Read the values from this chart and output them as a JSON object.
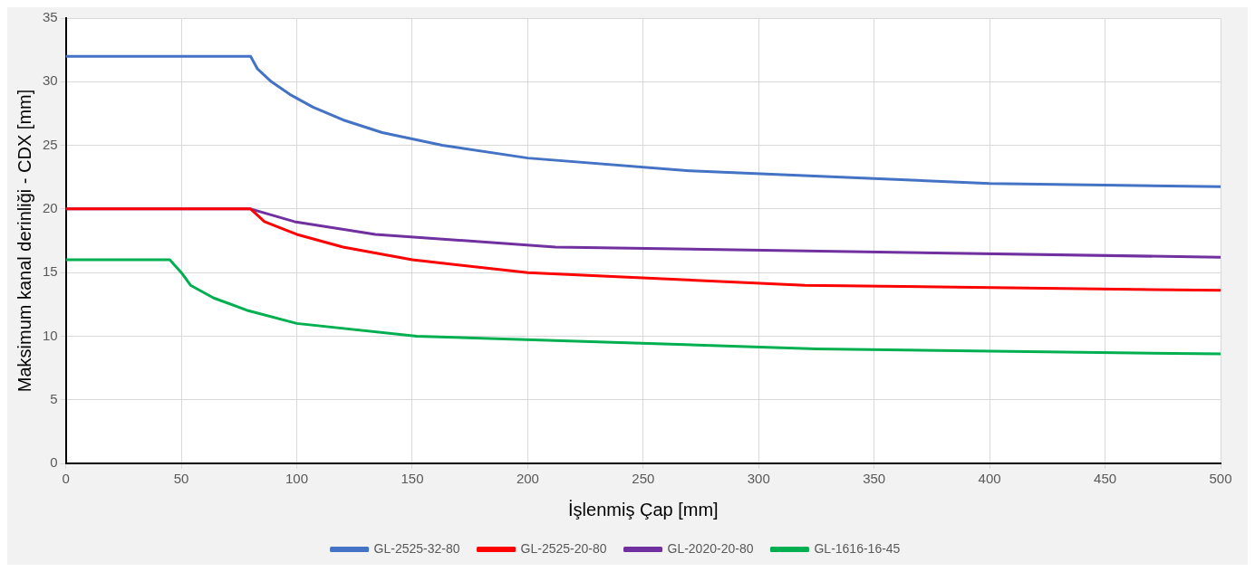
{
  "chart_data": {
    "type": "line",
    "xlabel": "İşlenmiş Çap [mm]",
    "ylabel": "Maksimum kanal derinliği - CDX [mm]",
    "xlim": [
      0,
      500
    ],
    "xticks": [
      0,
      50,
      100,
      150,
      200,
      250,
      300,
      350,
      400,
      450,
      500
    ],
    "ylim": [
      0,
      35
    ],
    "yticks": [
      0,
      5,
      10,
      15,
      20,
      25,
      30,
      35
    ],
    "grid": true,
    "legend": "bottom",
    "marker": "none",
    "line_style": "solid",
    "series": [
      {
        "name": "GL-2525-32-80",
        "color": "#4472c4",
        "x": [
          0,
          80,
          83,
          89,
          97,
          107,
          120,
          137,
          163,
          200,
          270,
          400,
          500
        ],
        "values": [
          32,
          32,
          31,
          30,
          29,
          28,
          27,
          26,
          25,
          24,
          23,
          22,
          21.75
        ]
      },
      {
        "name": "GL-2525-20-80",
        "color": "#ff0000",
        "x": [
          0,
          80,
          86,
          100,
          120,
          150,
          200,
          320,
          500
        ],
        "values": [
          20,
          20,
          19,
          18,
          17,
          16,
          15,
          14,
          13.6
        ]
      },
      {
        "name": "GL-2020-20-80",
        "color": "#7030a0",
        "x": [
          0,
          80,
          99,
          134,
          212,
          500
        ],
        "values": [
          20,
          20,
          19,
          18,
          17,
          16.2
        ]
      },
      {
        "name": "GL-1616-16-45",
        "color": "#00b050",
        "x": [
          0,
          45,
          50,
          54,
          64,
          79,
          100,
          152,
          325,
          500
        ],
        "values": [
          16,
          16,
          15,
          14,
          13,
          12,
          11,
          10,
          9,
          8.6
        ]
      }
    ]
  }
}
